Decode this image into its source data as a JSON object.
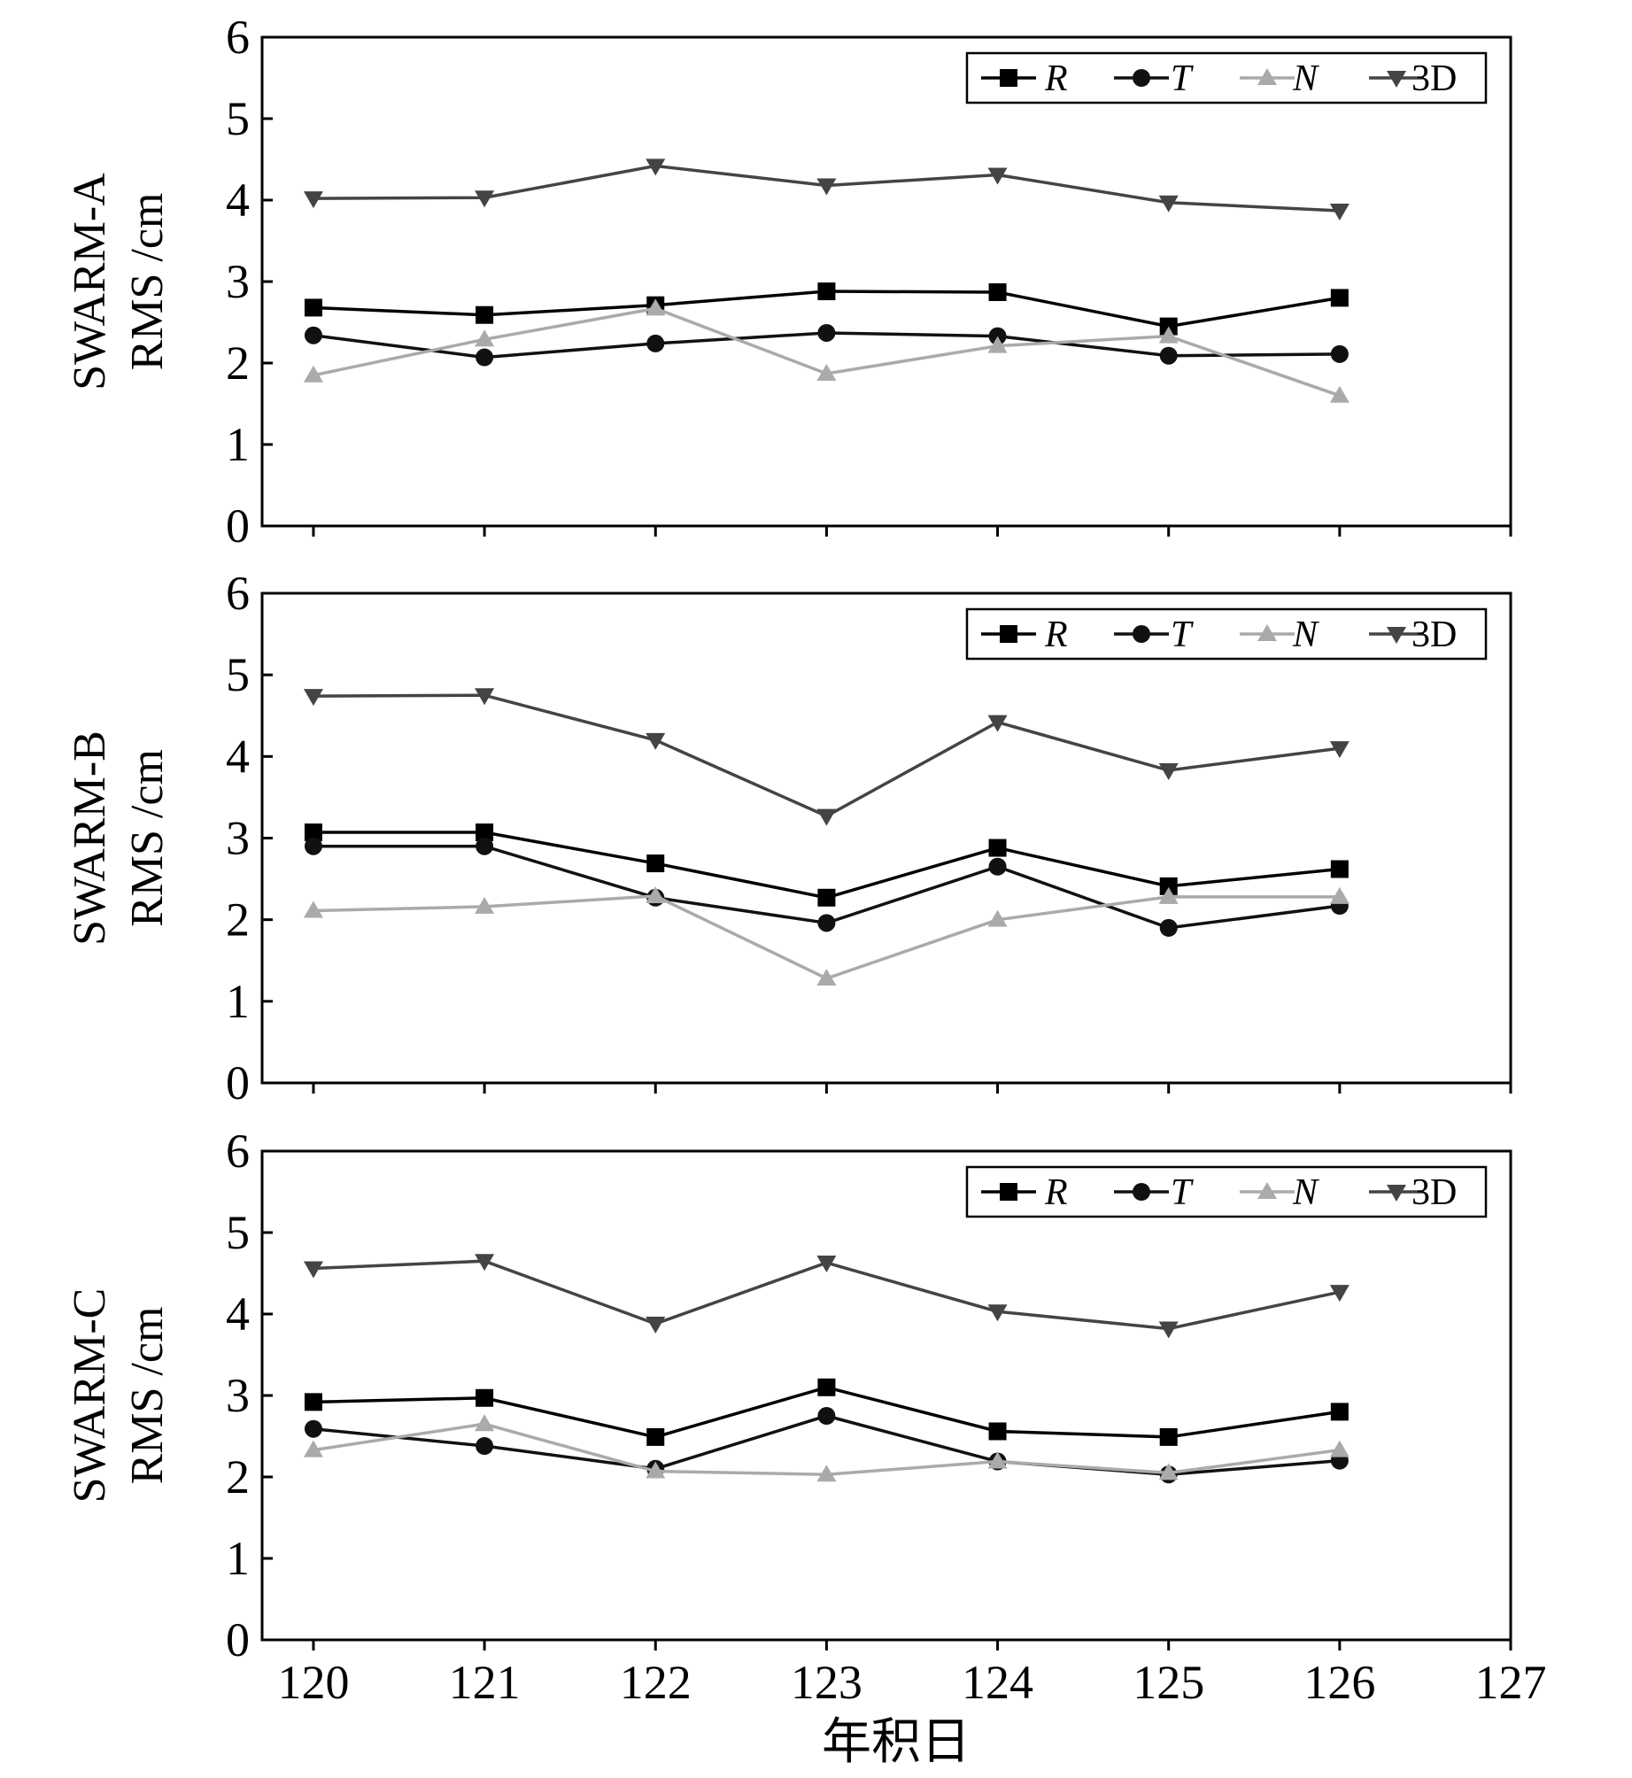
{
  "chart_data": {
    "type": "line",
    "xlabel": "年积日",
    "x_ticks": [
      "120",
      "121",
      "122",
      "123",
      "124",
      "125",
      "126",
      "127"
    ],
    "y_ticks": [
      "0",
      "1",
      "2",
      "3",
      "4",
      "5",
      "6"
    ],
    "xlim": [
      119.7,
      127
    ],
    "ylim": [
      0,
      6
    ],
    "series_styles": [
      {
        "name": "R",
        "italic": true,
        "color": "#000000",
        "marker": "square"
      },
      {
        "name": "T",
        "italic": true,
        "color": "#111111",
        "marker": "circle"
      },
      {
        "name": "N",
        "italic": true,
        "color": "#aaaaaa",
        "marker": "triangle-up"
      },
      {
        "name": "3D",
        "italic": false,
        "color": "#444444",
        "marker": "triangle-down"
      }
    ],
    "panels": [
      {
        "ylabel_line1": "SWARM-A",
        "ylabel_line2": "RMS /cm",
        "x": [
          120,
          121,
          122,
          123,
          124,
          125,
          126
        ],
        "series": [
          {
            "name": "R",
            "values": [
              2.68,
              2.59,
              2.71,
              2.88,
              2.87,
              2.45,
              2.8
            ]
          },
          {
            "name": "T",
            "values": [
              2.34,
              2.07,
              2.24,
              2.37,
              2.33,
              2.09,
              2.11
            ]
          },
          {
            "name": "N",
            "values": [
              1.85,
              2.29,
              2.67,
              1.87,
              2.21,
              2.33,
              1.6
            ]
          },
          {
            "name": "3D",
            "values": [
              4.02,
              4.03,
              4.42,
              4.18,
              4.31,
              3.97,
              3.87
            ]
          }
        ]
      },
      {
        "ylabel_line1": "SWARM-B",
        "ylabel_line2": "RMS /cm",
        "x": [
          120,
          121,
          122,
          123,
          124,
          125,
          126
        ],
        "series": [
          {
            "name": "R",
            "values": [
              3.07,
              3.07,
              2.69,
              2.27,
              2.88,
              2.41,
              2.62
            ]
          },
          {
            "name": "T",
            "values": [
              2.9,
              2.9,
              2.27,
              1.96,
              2.65,
              1.9,
              2.17
            ]
          },
          {
            "name": "N",
            "values": [
              2.11,
              2.16,
              2.29,
              1.28,
              2.0,
              2.28,
              2.28
            ]
          },
          {
            "name": "3D",
            "values": [
              4.74,
              4.75,
              4.2,
              3.27,
              4.42,
              3.83,
              4.1
            ]
          }
        ]
      },
      {
        "ylabel_line1": "SWARM-C",
        "ylabel_line2": "RMS /cm",
        "x": [
          120,
          121,
          122,
          123,
          124,
          125,
          126
        ],
        "series": [
          {
            "name": "R",
            "values": [
              2.92,
              2.97,
              2.49,
              3.1,
              2.56,
              2.49,
              2.8
            ]
          },
          {
            "name": "T",
            "values": [
              2.59,
              2.38,
              2.1,
              2.75,
              2.19,
              2.03,
              2.2
            ]
          },
          {
            "name": "N",
            "values": [
              2.33,
              2.65,
              2.07,
              2.03,
              2.19,
              2.05,
              2.33
            ]
          },
          {
            "name": "3D",
            "values": [
              4.56,
              4.65,
              3.88,
              4.63,
              4.03,
              3.82,
              4.27
            ]
          }
        ]
      }
    ]
  }
}
